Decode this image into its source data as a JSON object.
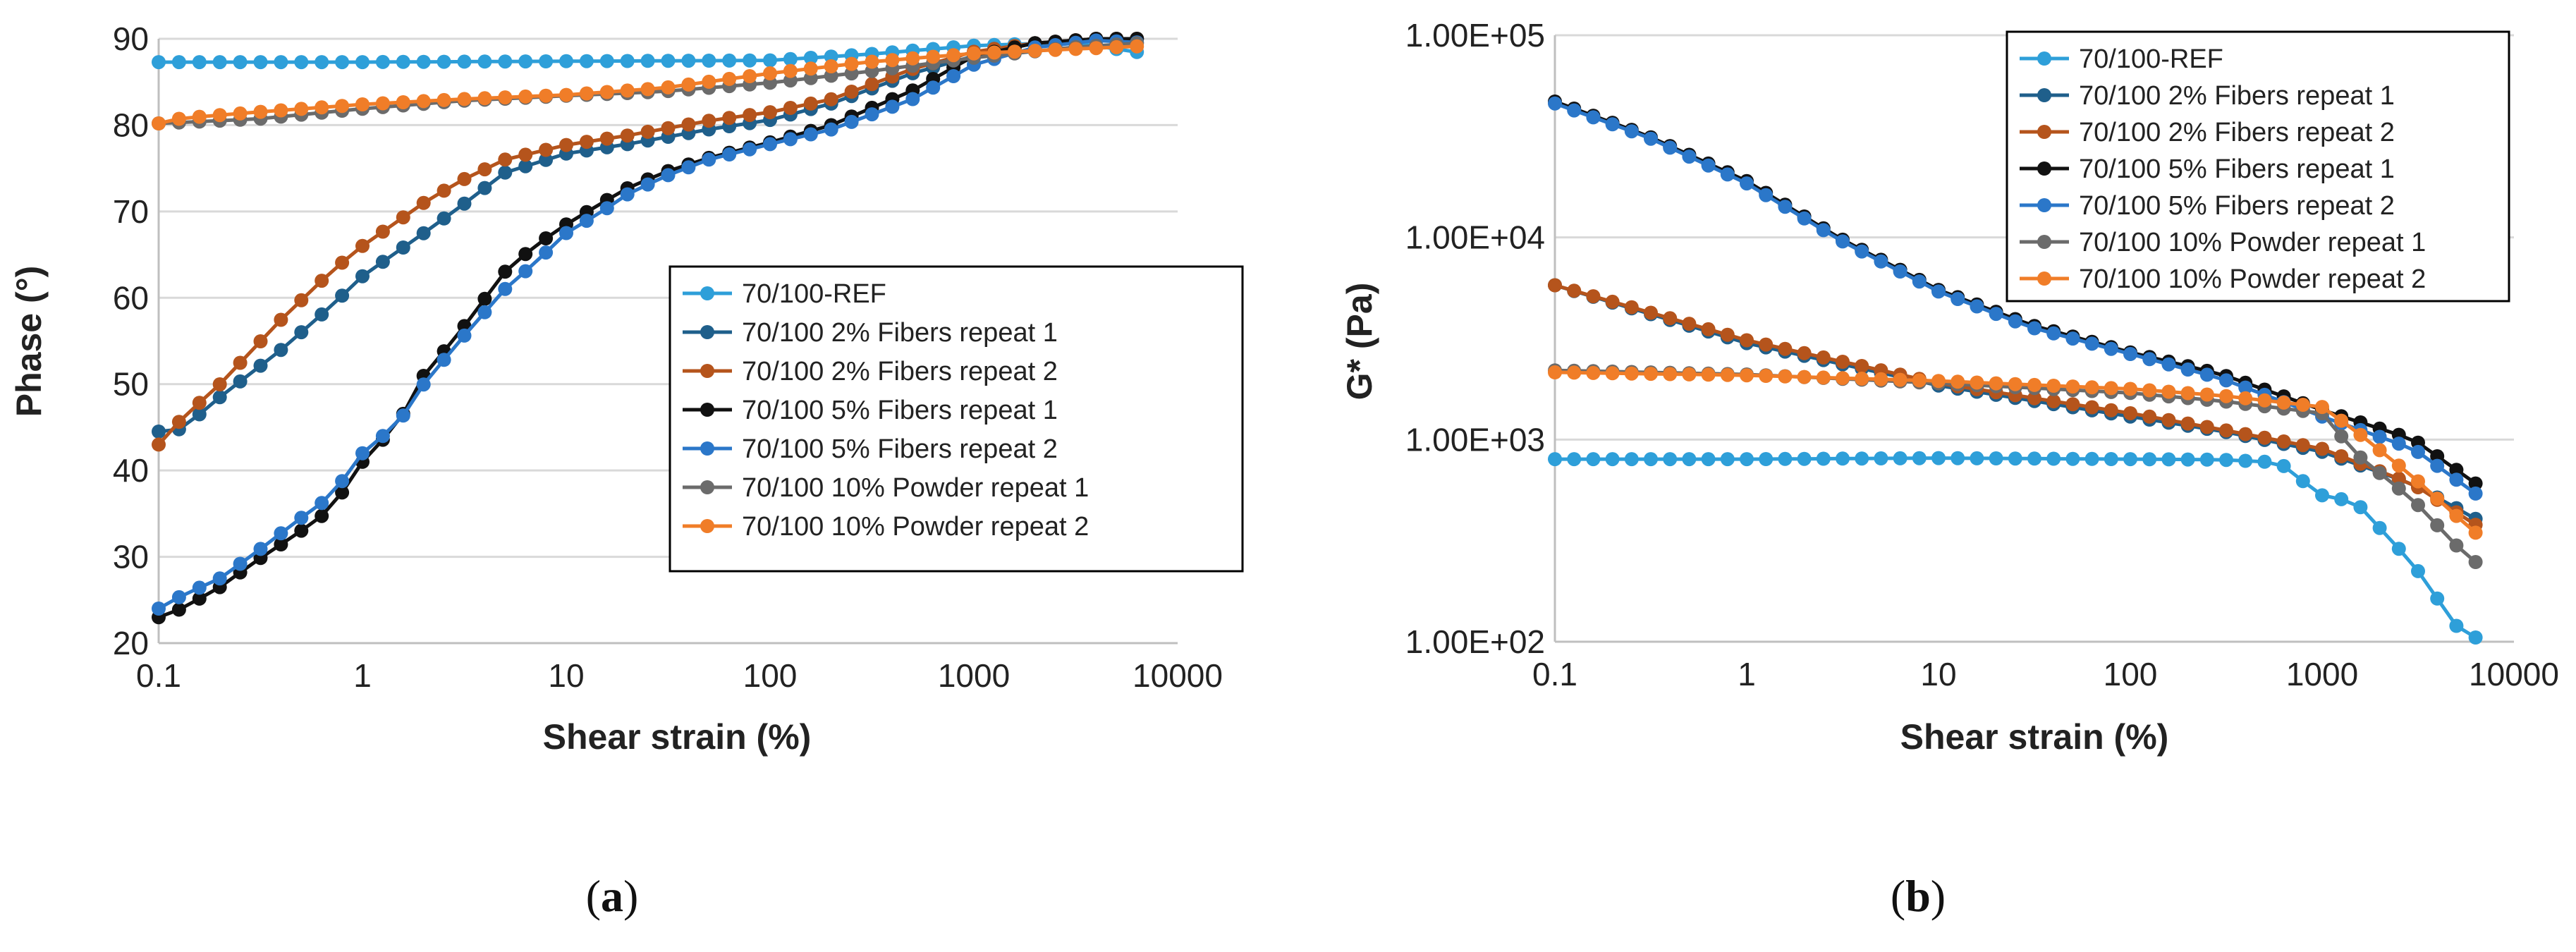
{
  "chart_data": [
    {
      "type": "line",
      "panel_label": "(a)",
      "panel_letter": "a",
      "xlabel": "Shear strain (%)",
      "ylabel": "Phase (°)",
      "xscale": "log",
      "xlim": [
        0.1,
        10000
      ],
      "ylim": [
        20,
        90
      ],
      "x_ticks": [
        "0.1",
        "1",
        "10",
        "100",
        "1000",
        "10000"
      ],
      "y_ticks": [
        "20",
        "30",
        "40",
        "50",
        "60",
        "70",
        "80",
        "90"
      ],
      "grid": "horizontal",
      "legend_position": "center-right",
      "series": [
        {
          "name": "70/100-REF",
          "color": "#2e9fd9",
          "x": [
            0.1,
            1,
            10,
            100,
            300,
            1000,
            3000,
            7500
          ],
          "y": [
            87.3,
            87.3,
            87.4,
            87.5,
            88.2,
            89.2,
            89.6,
            88.2
          ]
        },
        {
          "name": "70/100 2% Fibers repeat 1",
          "color": "#1f5f8b",
          "x": [
            0.1,
            0.13,
            0.2,
            0.4,
            0.7,
            1,
            2,
            3,
            5,
            10,
            20,
            50,
            100,
            200,
            500,
            1000,
            2000,
            4000,
            7500
          ],
          "y": [
            44.5,
            44.8,
            48.5,
            54,
            59,
            62.5,
            67.5,
            70.5,
            74.5,
            76.7,
            77.8,
            79.5,
            80.6,
            82.5,
            86,
            88,
            89.5,
            90,
            90
          ]
        },
        {
          "name": "70/100 2% Fibers repeat 2",
          "color": "#b5541c",
          "x": [
            0.1,
            0.13,
            0.2,
            0.4,
            0.7,
            1,
            2,
            3,
            5,
            10,
            20,
            50,
            100,
            200,
            500,
            1000,
            2000,
            4000,
            7500
          ],
          "y": [
            43,
            46,
            50,
            57.5,
            63,
            66,
            71,
            73.5,
            76,
            77.7,
            78.8,
            80.5,
            81.5,
            83,
            86.5,
            88.5,
            89.5,
            90,
            90
          ]
        },
        {
          "name": "70/100 5% Fibers repeat 1",
          "color": "#111111",
          "x": [
            0.1,
            0.13,
            0.2,
            0.3,
            0.5,
            0.7,
            1,
            1.5,
            2,
            3,
            5,
            7,
            10,
            15,
            20,
            30,
            50,
            100,
            200,
            500,
            1000,
            2000,
            4000,
            7500
          ],
          "y": [
            23,
            24,
            26.5,
            29.5,
            33,
            35.5,
            41,
            45.5,
            51,
            56,
            63,
            66,
            68.5,
            71,
            72.7,
            74.5,
            76.2,
            78,
            80,
            84,
            88,
            89.5,
            90,
            90
          ]
        },
        {
          "name": "70/100 5% Fibers repeat 2",
          "color": "#2b77c9",
          "x": [
            0.1,
            0.13,
            0.2,
            0.3,
            0.5,
            0.7,
            1,
            1.5,
            2,
            3,
            5,
            7,
            10,
            15,
            20,
            30,
            50,
            100,
            200,
            500,
            1000,
            2000,
            4000,
            7500
          ],
          "y": [
            24,
            25.5,
            27.5,
            30.5,
            34.5,
            37,
            42,
            45.5,
            50,
            55,
            61,
            64,
            67.5,
            70,
            72,
            74,
            76,
            77.8,
            79.5,
            83,
            87,
            89,
            89.8,
            89.5
          ]
        },
        {
          "name": "70/100 10% Powder repeat 1",
          "color": "#6b6b6b",
          "x": [
            0.1,
            0.3,
            1,
            3,
            10,
            30,
            100,
            300,
            1000,
            3000,
            7500
          ],
          "y": [
            80.2,
            80.7,
            81.9,
            82.8,
            83.4,
            83.9,
            84.9,
            86.2,
            87.8,
            89,
            89.6
          ]
        },
        {
          "name": "70/100 10% Powder repeat 2",
          "color": "#f07d28",
          "x": [
            0.1,
            0.13,
            0.3,
            1,
            3,
            10,
            30,
            100,
            300,
            1000,
            3000,
            7500
          ],
          "y": [
            80.2,
            80.8,
            81.5,
            82.4,
            83,
            83.5,
            84.3,
            86,
            87.3,
            88.3,
            88.8,
            89.2
          ]
        }
      ]
    },
    {
      "type": "line",
      "panel_label": "(b)",
      "panel_letter": "b",
      "xlabel": "Shear strain (%)",
      "ylabel": "G* (Pa)",
      "xscale": "log",
      "yscale": "log",
      "xlim": [
        0.1,
        10000
      ],
      "ylim": [
        100,
        100000
      ],
      "x_ticks": [
        "0.1",
        "1",
        "10",
        "100",
        "1000",
        "10000"
      ],
      "y_ticks": [
        "1.00E+02",
        "1.00E+03",
        "1.00E+04",
        "1.00E+05"
      ],
      "grid": "horizontal",
      "legend_position": "top-right",
      "series": [
        {
          "name": "70/100-REF",
          "color": "#2e9fd9",
          "x": [
            0.1,
            1,
            10,
            100,
            300,
            600,
            700,
            1000,
            1500,
            3000,
            5000,
            7500
          ],
          "y": [
            800,
            800,
            810,
            800,
            795,
            770,
            680,
            530,
            490,
            240,
            120,
            95
          ]
        },
        {
          "name": "70/100 2% Fibers repeat 1",
          "color": "#1f5f8b",
          "x": [
            0.1,
            1,
            10,
            100,
            300,
            1000,
            3000,
            7500
          ],
          "y": [
            5800,
            3000,
            1850,
            1300,
            1100,
            870,
            600,
            370
          ]
        },
        {
          "name": "70/100 2% Fibers repeat 2",
          "color": "#b5541c",
          "x": [
            0.1,
            1,
            10,
            100,
            300,
            1000,
            3000,
            7500
          ],
          "y": [
            5800,
            3100,
            1900,
            1350,
            1120,
            900,
            600,
            340
          ]
        },
        {
          "name": "70/100 5% Fibers repeat 1",
          "color": "#111111",
          "x": [
            0.1,
            0.3,
            1,
            3,
            10,
            30,
            100,
            300,
            1000,
            3000,
            7500
          ],
          "y": [
            47000,
            32000,
            19000,
            10000,
            5500,
            3700,
            2700,
            2100,
            1400,
            1000,
            540
          ]
        },
        {
          "name": "70/100 5% Fibers repeat 2",
          "color": "#2b77c9",
          "x": [
            0.1,
            0.3,
            1,
            3,
            10,
            30,
            100,
            300,
            1000,
            3000,
            7500
          ],
          "y": [
            46000,
            31500,
            18500,
            9800,
            5400,
            3600,
            2650,
            2000,
            1300,
            900,
            480
          ]
        },
        {
          "name": "70/100 10% Powder repeat 1",
          "color": "#6b6b6b",
          "x": [
            0.1,
            1,
            10,
            100,
            300,
            1000,
            1500,
            3000,
            5000,
            7500
          ],
          "y": [
            2200,
            2100,
            1900,
            1700,
            1550,
            1350,
            850,
            500,
            300,
            215
          ]
        },
        {
          "name": "70/100 10% Powder repeat 2",
          "color": "#f07d28",
          "x": [
            0.1,
            1,
            10,
            100,
            300,
            1000,
            1500,
            3000,
            5000,
            7500
          ],
          "y": [
            2150,
            2080,
            1950,
            1780,
            1650,
            1450,
            1100,
            650,
            420,
            300
          ]
        }
      ]
    }
  ]
}
